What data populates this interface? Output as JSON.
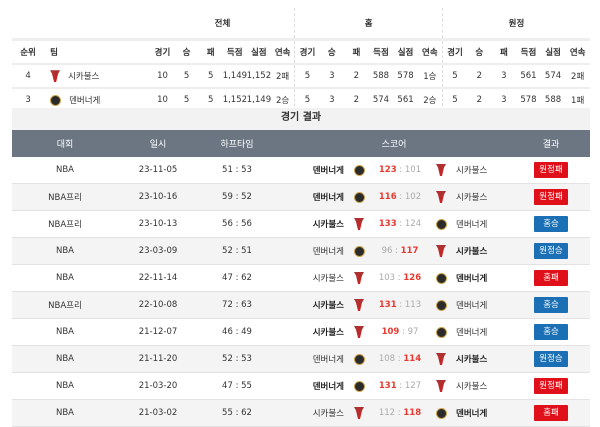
{
  "standings": {
    "groups": [
      "전체",
      "홈",
      "원정"
    ],
    "headers": [
      "순위",
      "팀"
    ],
    "sub": [
      "경기",
      "승",
      "패",
      "득점",
      "실점",
      "연속"
    ],
    "rows": [
      {
        "rank": "4",
        "team": "시카불스",
        "logo": "bulls",
        "all": [
          "10",
          "5",
          "5",
          "1,149",
          "1,152",
          "2패"
        ],
        "home": [
          "5",
          "3",
          "2",
          "588",
          "578",
          "1승"
        ],
        "away": [
          "5",
          "2",
          "3",
          "561",
          "574",
          "2패"
        ]
      },
      {
        "rank": "3",
        "team": "덴버너게",
        "logo": "nuggets",
        "all": [
          "10",
          "5",
          "5",
          "1,152",
          "1,149",
          "2승"
        ],
        "home": [
          "5",
          "3",
          "2",
          "574",
          "561",
          "2승"
        ],
        "away": [
          "5",
          "2",
          "3",
          "578",
          "588",
          "1패"
        ]
      }
    ]
  },
  "results": {
    "title": "경기 결과",
    "headers": [
      "대회",
      "일시",
      "하프타임",
      "스코어",
      "결과"
    ],
    "colors": {
      "win": "#1a6fb5",
      "loss": "#e0101a",
      "score_win": "#e8392f"
    },
    "rows": [
      {
        "league": "NBA",
        "date": "23-11-05",
        "half": "51 : 53",
        "home": "덴버너게",
        "hlogo": "nuggets",
        "hs": "123",
        "as": "101",
        "away": "시카불스",
        "alogo": "bulls",
        "result": "원정패",
        "win": false,
        "hw": true
      },
      {
        "league": "NBA프리",
        "date": "23-10-16",
        "half": "59 : 52",
        "home": "덴버너게",
        "hlogo": "nuggets",
        "hs": "116",
        "as": "102",
        "away": "시카불스",
        "alogo": "bulls",
        "result": "원정패",
        "win": false,
        "hw": true
      },
      {
        "league": "NBA프리",
        "date": "23-10-13",
        "half": "56 : 56",
        "home": "시카불스",
        "hlogo": "bulls",
        "hs": "133",
        "as": "124",
        "away": "덴버너게",
        "alogo": "nuggets",
        "result": "홈승",
        "win": true,
        "hw": true
      },
      {
        "league": "NBA",
        "date": "23-03-09",
        "half": "52 : 51",
        "home": "덴버너게",
        "hlogo": "nuggets",
        "hs": "96",
        "as": "117",
        "away": "시카불스",
        "alogo": "bulls",
        "result": "원정승",
        "win": true,
        "hw": false
      },
      {
        "league": "NBA",
        "date": "22-11-14",
        "half": "47 : 62",
        "home": "시카불스",
        "hlogo": "bulls",
        "hs": "103",
        "as": "126",
        "away": "덴버너게",
        "alogo": "nuggets",
        "result": "홈패",
        "win": false,
        "hw": false
      },
      {
        "league": "NBA프리",
        "date": "22-10-08",
        "half": "72 : 63",
        "home": "시카불스",
        "hlogo": "bulls",
        "hs": "131",
        "as": "113",
        "away": "덴버너게",
        "alogo": "nuggets",
        "result": "홈승",
        "win": true,
        "hw": true
      },
      {
        "league": "NBA",
        "date": "21-12-07",
        "half": "46 : 49",
        "home": "시카불스",
        "hlogo": "bulls",
        "hs": "109",
        "as": "97",
        "away": "덴버너게",
        "alogo": "nuggets",
        "result": "홈승",
        "win": true,
        "hw": true
      },
      {
        "league": "NBA",
        "date": "21-11-20",
        "half": "52 : 53",
        "home": "덴버너게",
        "hlogo": "nuggets",
        "hs": "108",
        "as": "114",
        "away": "시카불스",
        "alogo": "bulls",
        "result": "원정승",
        "win": true,
        "hw": false
      },
      {
        "league": "NBA",
        "date": "21-03-20",
        "half": "47 : 55",
        "home": "덴버너게",
        "hlogo": "nuggets",
        "hs": "131",
        "as": "127",
        "away": "시카불스",
        "alogo": "bulls",
        "result": "원정패",
        "win": false,
        "hw": true
      },
      {
        "league": "NBA",
        "date": "21-03-02",
        "half": "55 : 62",
        "home": "시카불스",
        "hlogo": "bulls",
        "hs": "112",
        "as": "118",
        "away": "덴버너게",
        "alogo": "nuggets",
        "result": "홈패",
        "win": false,
        "hw": false
      }
    ]
  }
}
